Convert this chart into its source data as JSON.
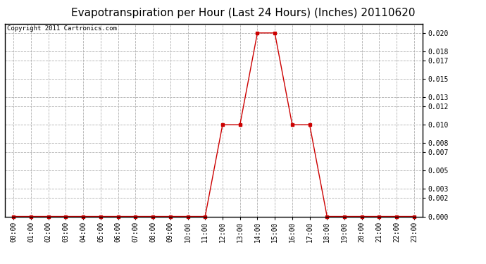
{
  "title": "Evapotranspiration per Hour (Last 24 Hours) (Inches) 20110620",
  "copyright": "Copyright 2011 Cartronics.com",
  "hours": [
    "00:00",
    "01:00",
    "02:00",
    "03:00",
    "04:00",
    "05:00",
    "06:00",
    "07:00",
    "08:00",
    "09:00",
    "10:00",
    "11:00",
    "12:00",
    "13:00",
    "14:00",
    "15:00",
    "16:00",
    "17:00",
    "18:00",
    "19:00",
    "20:00",
    "21:00",
    "22:00",
    "23:00"
  ],
  "values": [
    0.0,
    0.0,
    0.0,
    0.0,
    0.0,
    0.0,
    0.0,
    0.0,
    0.0,
    0.0,
    0.0,
    0.0,
    0.01,
    0.01,
    0.02,
    0.02,
    0.01,
    0.01,
    0.0,
    0.0,
    0.0,
    0.0,
    0.0,
    0.0
  ],
  "line_color": "#cc0000",
  "marker": "s",
  "marker_size": 3,
  "bg_color": "#ffffff",
  "plot_bg_color": "#ffffff",
  "grid_color": "#b0b0b0",
  "yticks": [
    0.0,
    0.002,
    0.003,
    0.005,
    0.007,
    0.008,
    0.01,
    0.012,
    0.013,
    0.015,
    0.017,
    0.018,
    0.02
  ],
  "ylim": [
    0.0,
    0.021
  ],
  "title_fontsize": 11,
  "copyright_fontsize": 6.5,
  "tick_fontsize": 7,
  "border_color": "#000000"
}
